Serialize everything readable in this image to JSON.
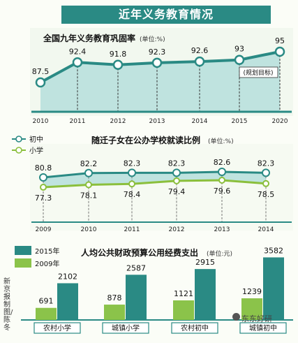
{
  "main_title": "近年义务教育情况",
  "credit": "新京报制图/陈冬",
  "watermark": "东东好研",
  "chart_data": [
    {
      "type": "line",
      "title": "全国九年义务教育巩固率",
      "unit_note": "(单位:%)",
      "categories": [
        "2010",
        "2011",
        "2012",
        "2013",
        "2014",
        "2015",
        "2020"
      ],
      "series": [
        {
          "values": [
            87.5,
            92.4,
            91.8,
            92.3,
            92.6,
            93,
            95
          ]
        }
      ],
      "value_labels": [
        "87.5",
        "92.4",
        "91.8",
        "92.3",
        "92.6",
        "93",
        "95"
      ],
      "annotation": "(规划目标)",
      "colors": {
        "line": "#2a8a84",
        "fill": "#bfe3df"
      }
    },
    {
      "type": "line",
      "title": "随迁子女在公办学校就读比例",
      "unit_note": "(单位:%)",
      "categories": [
        "2009",
        "2010",
        "2011",
        "2012",
        "2013",
        "2014"
      ],
      "series": [
        {
          "name": "初中",
          "values": [
            80.8,
            82.2,
            82.3,
            82.3,
            82.6,
            82.3
          ],
          "color": "#2a8a84"
        },
        {
          "name": "小学",
          "values": [
            77.3,
            78.1,
            78.4,
            79.4,
            79.6,
            78.5
          ],
          "color": "#8bbf3c"
        }
      ]
    },
    {
      "type": "bar",
      "title": "人均公共财政预算公用经费支出",
      "unit_note": "(单位:元)",
      "categories": [
        "农村小学",
        "城镇小学",
        "农村初中",
        "城镇初中"
      ],
      "series": [
        {
          "name": "2009年",
          "values": [
            691,
            878,
            1121,
            1239
          ],
          "color": "#8bc34a"
        },
        {
          "name": "2015年",
          "values": [
            2102,
            2587,
            2915,
            3582
          ],
          "color": "#2a8a84"
        }
      ],
      "ylim": [
        0,
        3800
      ]
    }
  ]
}
